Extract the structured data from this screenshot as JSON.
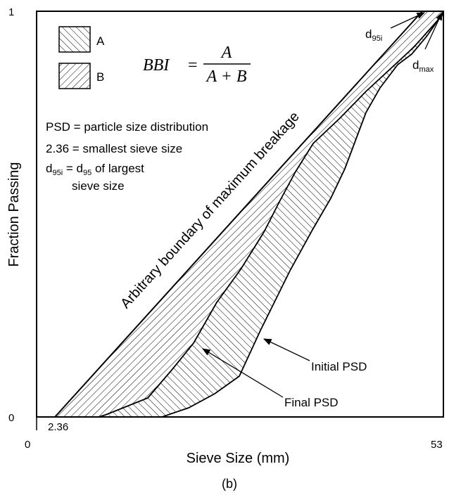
{
  "axes": {
    "x_label": "Sieve Size (mm)",
    "y_label": "Fraction Passing",
    "x_min_tick": "0",
    "x_smallest_sieve_tick": "2.36",
    "x_max_tick": "53",
    "y_min_tick": "0",
    "y_max_tick": "1"
  },
  "legend": {
    "a_label": "A",
    "b_label": "B"
  },
  "formula": {
    "lhs": "BBI",
    "eq": "=",
    "numerator": "A",
    "denominator": "A + B"
  },
  "notes": {
    "line1": "PSD = particle size distribution",
    "line2": "2.36 = smallest sieve size",
    "line3_lead": "d",
    "line3_lead_sub": "95i",
    "line3_mid": " = d",
    "line3_mid_sub": "95",
    "line3_tail": " of largest",
    "line4": "sieve size"
  },
  "labels": {
    "boundary": "Arbitrary boundary of maximum breakage",
    "initial_psd": "Initial PSD",
    "final_psd": "Final PSD",
    "d95i_main": "d",
    "d95i_sub": "95i",
    "dmax_main": "d",
    "dmax_sub": "max"
  },
  "caption": "(b)"
}
